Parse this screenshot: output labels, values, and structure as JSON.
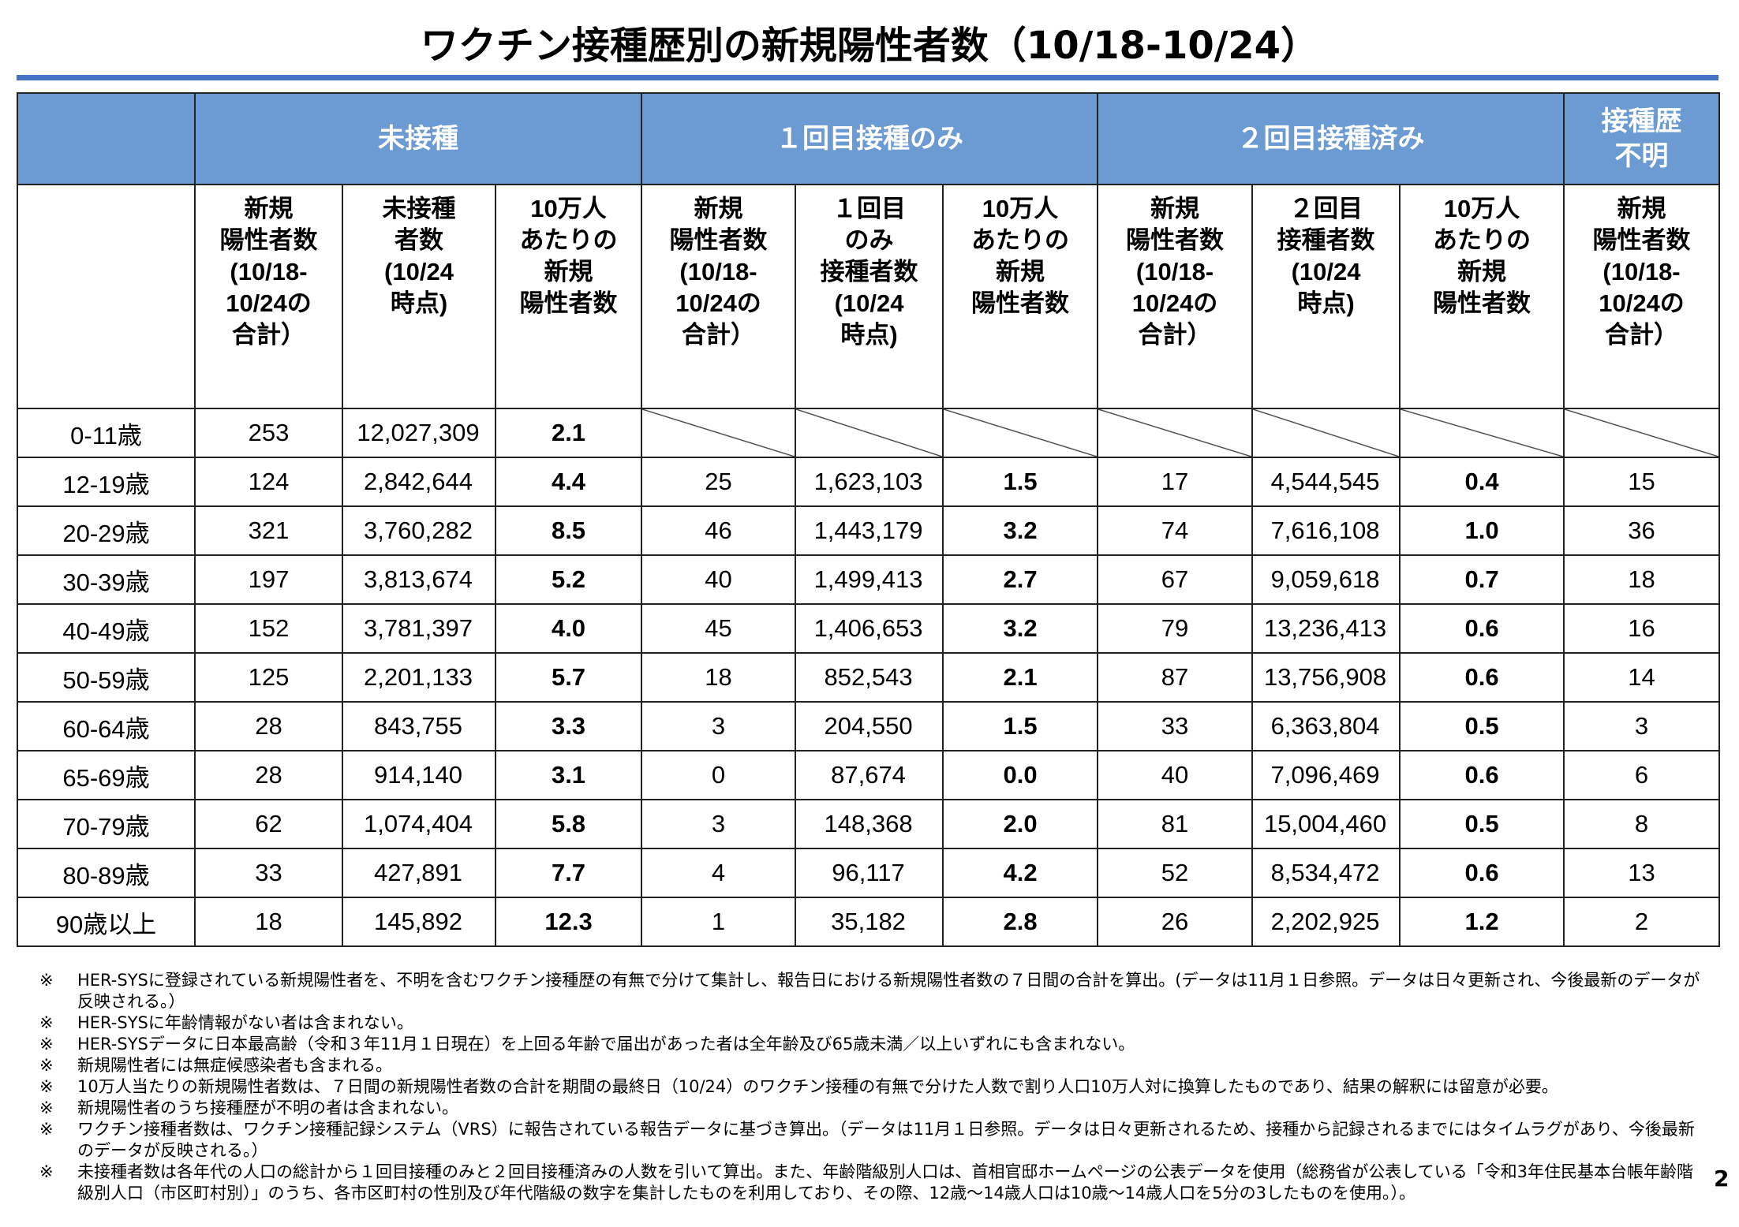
{
  "title": "ワクチン接種歴別の新規陽性者数（10/18-10/24）",
  "table": {
    "groups": [
      "未接種",
      "１回目接種のみ",
      "２回目接種済み",
      "接種歴\n不明"
    ],
    "subheaders": [
      "新規\n陽性者数\n(10/18-\n10/24の\n合計）",
      "未接種\n者数\n(10/24\n時点)",
      "10万人\nあたりの\n新規\n陽性者数",
      "新規\n陽性者数\n(10/18-\n10/24の\n合計）",
      "１回目\nのみ\n接種者数\n(10/24\n時点)",
      "10万人\nあたりの\n新規\n陽性者数",
      "新規\n陽性者数\n(10/18-\n10/24の\n合計）",
      "２回目\n接種者数\n(10/24\n時点)",
      "10万人\nあたりの\n新規\n陽性者数",
      "新規\n陽性者数\n(10/18-\n10/24の\n合計）"
    ],
    "rows": [
      [
        "0-11歳",
        "253",
        "12,027,309",
        "2.1"
      ],
      [
        "12-19歳",
        "124",
        "2,842,644",
        "4.4",
        "25",
        "1,623,103",
        "1.5",
        "17",
        "4,544,545",
        "0.4",
        "15"
      ],
      [
        "20-29歳",
        "321",
        "3,760,282",
        "8.5",
        "46",
        "1,443,179",
        "3.2",
        "74",
        "7,616,108",
        "1.0",
        "36"
      ],
      [
        "30-39歳",
        "197",
        "3,813,674",
        "5.2",
        "40",
        "1,499,413",
        "2.7",
        "67",
        "9,059,618",
        "0.7",
        "18"
      ],
      [
        "40-49歳",
        "152",
        "3,781,397",
        "4.0",
        "45",
        "1,406,653",
        "3.2",
        "79",
        "13,236,413",
        "0.6",
        "16"
      ],
      [
        "50-59歳",
        "125",
        "2,201,133",
        "5.7",
        "18",
        "852,543",
        "2.1",
        "87",
        "13,756,908",
        "0.6",
        "14"
      ],
      [
        "60-64歳",
        "28",
        "843,755",
        "3.3",
        "3",
        "204,550",
        "1.5",
        "33",
        "6,363,804",
        "0.5",
        "3"
      ],
      [
        "65-69歳",
        "28",
        "914,140",
        "3.1",
        "0",
        "87,674",
        "0.0",
        "40",
        "7,096,469",
        "0.6",
        "6"
      ],
      [
        "70-79歳",
        "62",
        "1,074,404",
        "5.8",
        "3",
        "148,368",
        "2.0",
        "81",
        "15,004,460",
        "0.5",
        "8"
      ],
      [
        "80-89歳",
        "33",
        "427,891",
        "7.7",
        "4",
        "96,117",
        "4.2",
        "52",
        "8,534,472",
        "0.6",
        "13"
      ],
      [
        "90歳以上",
        "18",
        "145,892",
        "12.3",
        "1",
        "35,182",
        "2.8",
        "26",
        "2,202,925",
        "1.2",
        "2"
      ]
    ]
  },
  "note_marker": "※",
  "notes": [
    "HER-SYSに登録されている新規陽性者を、不明を含むワクチン接種歴の有無で分けて集計し、報告日における新規陽性者数の７日間の合計を算出。(データは11月１日参照。データは日々更新され、今後最新のデータが反映される。）",
    "HER-SYSに年齢情報がない者は含まれない。",
    "HER-SYSデータに日本最高齢（令和３年11月１日現在）を上回る年齢で届出があった者は全年齢及び65歳未満／以上いずれにも含まれない。",
    "新規陽性者には無症候感染者も含まれる。",
    "10万人当たりの新規陽性者数は、７日間の新規陽性者数の合計を期間の最終日（10/24）のワクチン接種の有無で分けた人数で割り人口10万人対に換算したものであり、結果の解釈には留意が必要。",
    "新規陽性者のうち接種歴が不明の者は含まれない。",
    "ワクチン接種者数は、ワクチン接種記録システム（VRS）に報告されている報告データに基づき算出。（データは11月１日参照。データは日々更新されるため、接種から記録されるまでにはタイムラグがあり、今後最新のデータが反映される。）",
    "未接種者数は各年代の人口の総計から１回目接種のみと２回目接種済みの人数を引いて算出。また、年齢階級別人口は、首相官邸ホームページの公表データを使用（総務省が公表している「令和3年住民基本台帳年齢階級別人口（市区町村別）」のうち、各市区町村の性別及び年代階級の数字を集計したものを利用しており、その際、12歳～14歳人口は10歳～14歳人口を5分の3したものを使用。）。"
  ],
  "page_number": "2"
}
